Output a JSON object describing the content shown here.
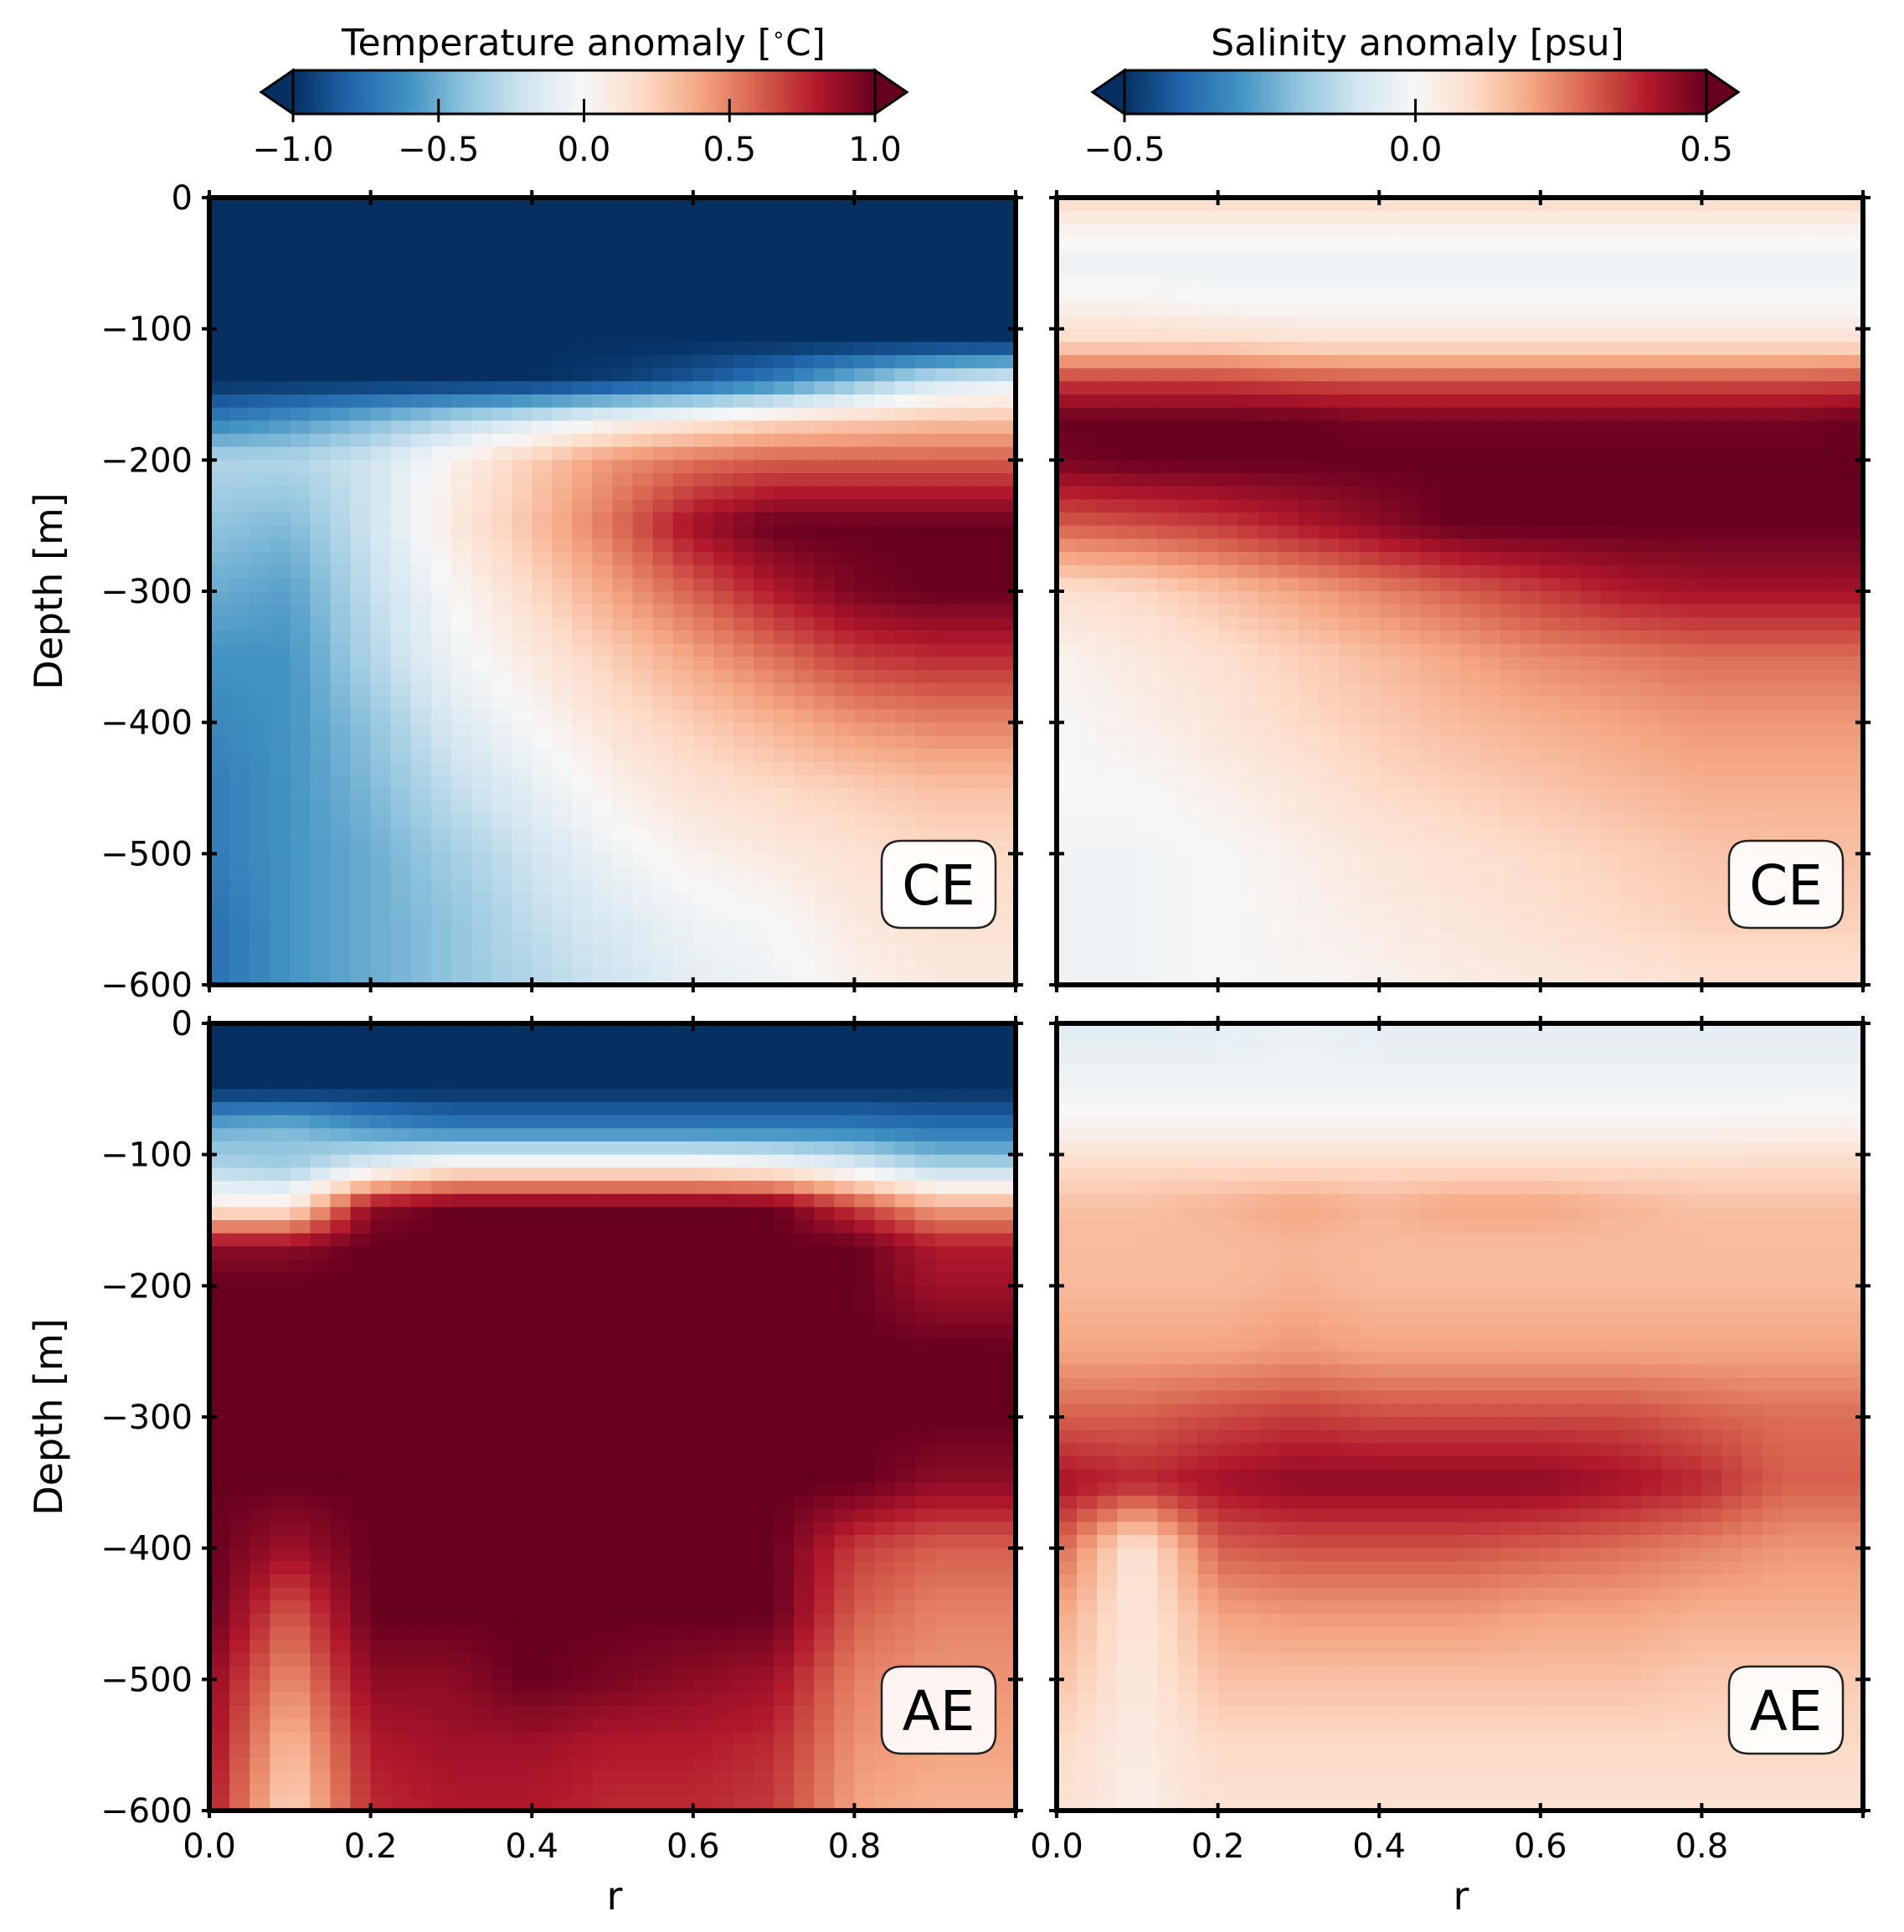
{
  "chart_data": {
    "type": "heatmap",
    "layout": "2x2 grid",
    "colormap": "RdBu_r",
    "colorbars": [
      {
        "id": "temperature",
        "title": "Temperature anomaly [$^\\circ$C]",
        "title_parts": [
          "Temperature anomaly [",
          "∘",
          "C]"
        ],
        "range": [
          -1.0,
          1.0
        ],
        "ticks": [
          -1.0,
          -0.5,
          0.0,
          0.5,
          1.0
        ],
        "tick_labels": [
          "−1.0",
          "−0.5",
          "0.0",
          "0.5",
          "1.0"
        ],
        "extend": "both"
      },
      {
        "id": "salinity",
        "title": "Salinity anomaly [psu]",
        "range": [
          -0.5,
          0.5
        ],
        "ticks": [
          -0.5,
          0.0,
          0.5
        ],
        "tick_labels": [
          "−0.5",
          "0.0",
          "0.5"
        ],
        "extend": "both"
      }
    ],
    "x_axis": {
      "label": "r",
      "range": [
        0.0,
        1.0
      ],
      "ticks": [
        0.0,
        0.2,
        0.4,
        0.6,
        0.8,
        1.0
      ],
      "tick_labels": [
        "0.0",
        "0.2",
        "0.4",
        "0.6",
        "0.8",
        ""
      ]
    },
    "y_axis": {
      "label": "Depth [m]",
      "range": [
        -600,
        0
      ],
      "ticks": [
        0,
        -100,
        -200,
        -300,
        -400,
        -500,
        -600
      ],
      "tick_labels": [
        "0",
        "−100",
        "−200",
        "−300",
        "−400",
        "−500",
        "−600"
      ]
    },
    "grid": false,
    "r_samples": [
      0.0,
      0.1,
      0.2,
      0.3,
      0.4,
      0.5,
      0.6,
      0.7,
      0.8,
      0.9,
      1.0
    ],
    "depth_samples": [
      0,
      -20,
      -50,
      -80,
      -110,
      -140,
      -170,
      -200,
      -250,
      -300,
      -350,
      -400,
      -450,
      -500,
      -550,
      -600
    ],
    "panels": [
      {
        "id": "temp-ce",
        "variable": "temperature",
        "eddy": "CE",
        "row": 0,
        "col": 0,
        "values": [
          [
            -1.0,
            -1.0,
            -1.0,
            -1.0,
            -1.0,
            -1.0,
            -1.0,
            -1.0,
            -1.0,
            -1.0,
            -1.0
          ],
          [
            -1.0,
            -1.0,
            -1.0,
            -1.0,
            -1.0,
            -1.0,
            -1.0,
            -1.0,
            -1.0,
            -1.0,
            -1.0
          ],
          [
            -1.0,
            -1.0,
            -1.0,
            -1.0,
            -1.0,
            -1.0,
            -1.0,
            -1.0,
            -1.0,
            -1.0,
            -1.0
          ],
          [
            -1.0,
            -1.0,
            -1.0,
            -1.0,
            -1.0,
            -1.0,
            -1.0,
            -1.0,
            -1.0,
            -1.0,
            -1.0
          ],
          [
            -1.0,
            -1.0,
            -1.0,
            -1.0,
            -1.0,
            -1.0,
            -1.0,
            -1.0,
            -1.0,
            -1.0,
            -1.0
          ],
          [
            -1.0,
            -1.0,
            -1.0,
            -1.0,
            -1.0,
            -0.95,
            -0.85,
            -0.7,
            -0.45,
            -0.2,
            -0.1
          ],
          [
            -0.7,
            -0.6,
            -0.45,
            -0.3,
            -0.15,
            0.0,
            0.1,
            0.2,
            0.25,
            0.3,
            0.3
          ],
          [
            -0.3,
            -0.3,
            -0.2,
            0.05,
            0.25,
            0.45,
            0.55,
            0.6,
            0.6,
            0.6,
            0.6
          ],
          [
            -0.4,
            -0.45,
            -0.2,
            0.1,
            0.3,
            0.55,
            0.85,
            1.0,
            1.0,
            1.0,
            1.0
          ],
          [
            -0.5,
            -0.55,
            -0.25,
            0.0,
            0.2,
            0.4,
            0.6,
            0.8,
            0.95,
            1.0,
            1.0
          ],
          [
            -0.6,
            -0.6,
            -0.3,
            -0.05,
            0.1,
            0.25,
            0.4,
            0.55,
            0.7,
            0.75,
            0.75
          ],
          [
            -0.65,
            -0.6,
            -0.4,
            -0.15,
            0.0,
            0.15,
            0.25,
            0.35,
            0.45,
            0.5,
            0.5
          ],
          [
            -0.7,
            -0.6,
            -0.45,
            -0.25,
            -0.1,
            0.05,
            0.15,
            0.2,
            0.25,
            0.3,
            0.3
          ],
          [
            -0.7,
            -0.6,
            -0.5,
            -0.35,
            -0.2,
            -0.05,
            0.05,
            0.1,
            0.15,
            0.2,
            0.2
          ],
          [
            -0.75,
            -0.6,
            -0.5,
            -0.4,
            -0.25,
            -0.15,
            -0.05,
            0.0,
            0.1,
            0.15,
            0.15
          ],
          [
            -0.75,
            -0.6,
            -0.5,
            -0.4,
            -0.3,
            -0.2,
            -0.1,
            -0.05,
            0.05,
            0.1,
            0.1
          ]
        ]
      },
      {
        "id": "sal-ce",
        "variable": "salinity",
        "eddy": "CE",
        "row": 0,
        "col": 1,
        "values": [
          [
            0.1,
            0.1,
            0.1,
            0.1,
            0.1,
            0.1,
            0.1,
            0.1,
            0.1,
            0.1,
            0.1
          ],
          [
            0.03,
            0.03,
            0.03,
            0.03,
            0.03,
            0.03,
            0.03,
            0.03,
            0.03,
            0.03,
            0.03
          ],
          [
            -0.03,
            -0.03,
            -0.03,
            -0.03,
            -0.03,
            -0.03,
            -0.03,
            -0.03,
            -0.03,
            -0.03,
            -0.03
          ],
          [
            0.02,
            0.02,
            0.0,
            0.0,
            0.0,
            0.0,
            0.0,
            0.0,
            0.0,
            0.0,
            0.0
          ],
          [
            0.1,
            0.1,
            0.1,
            0.08,
            0.08,
            0.08,
            0.08,
            0.08,
            0.08,
            0.08,
            0.08
          ],
          [
            0.35,
            0.35,
            0.35,
            0.33,
            0.32,
            0.32,
            0.32,
            0.32,
            0.32,
            0.32,
            0.33
          ],
          [
            0.5,
            0.5,
            0.5,
            0.5,
            0.48,
            0.48,
            0.48,
            0.48,
            0.48,
            0.48,
            0.5
          ],
          [
            0.48,
            0.5,
            0.5,
            0.5,
            0.5,
            0.5,
            0.5,
            0.5,
            0.5,
            0.5,
            0.5
          ],
          [
            0.3,
            0.32,
            0.35,
            0.4,
            0.45,
            0.5,
            0.5,
            0.5,
            0.5,
            0.5,
            0.5
          ],
          [
            0.08,
            0.1,
            0.15,
            0.2,
            0.25,
            0.3,
            0.35,
            0.4,
            0.42,
            0.42,
            0.42
          ],
          [
            0.02,
            0.05,
            0.08,
            0.12,
            0.16,
            0.2,
            0.24,
            0.26,
            0.28,
            0.28,
            0.28
          ],
          [
            0.0,
            0.03,
            0.06,
            0.1,
            0.13,
            0.16,
            0.18,
            0.2,
            0.22,
            0.22,
            0.22
          ],
          [
            0.0,
            0.0,
            0.03,
            0.06,
            0.1,
            0.12,
            0.14,
            0.16,
            0.18,
            0.18,
            0.18
          ],
          [
            -0.02,
            -0.02,
            0.0,
            0.03,
            0.06,
            0.08,
            0.1,
            0.12,
            0.14,
            0.15,
            0.15
          ],
          [
            -0.02,
            -0.02,
            0.0,
            0.02,
            0.04,
            0.06,
            0.08,
            0.1,
            0.12,
            0.12,
            0.12
          ],
          [
            -0.02,
            -0.02,
            0.0,
            0.01,
            0.02,
            0.04,
            0.05,
            0.06,
            0.08,
            0.08,
            0.08
          ]
        ]
      },
      {
        "id": "temp-ae",
        "variable": "temperature",
        "eddy": "AE",
        "row": 1,
        "col": 0,
        "values": [
          [
            -1.0,
            -1.0,
            -1.0,
            -1.0,
            -1.0,
            -1.0,
            -1.0,
            -1.0,
            -1.0,
            -1.0,
            -1.0
          ],
          [
            -1.0,
            -1.0,
            -1.0,
            -1.0,
            -1.0,
            -1.0,
            -1.0,
            -1.0,
            -1.0,
            -1.0,
            -1.0
          ],
          [
            -1.0,
            -1.0,
            -1.0,
            -1.0,
            -1.0,
            -1.0,
            -1.0,
            -1.0,
            -1.0,
            -1.0,
            -1.0
          ],
          [
            -0.5,
            -0.45,
            -0.6,
            -0.7,
            -0.7,
            -0.7,
            -0.7,
            -0.7,
            -0.7,
            -0.75,
            -0.75
          ],
          [
            -0.3,
            -0.35,
            -0.1,
            0.1,
            0.1,
            0.1,
            0.1,
            0.05,
            -0.1,
            -0.3,
            -0.3
          ],
          [
            0.1,
            0.1,
            0.9,
            1.0,
            1.0,
            1.0,
            1.0,
            1.0,
            0.7,
            0.4,
            0.4
          ],
          [
            0.9,
            0.9,
            1.0,
            1.0,
            1.0,
            1.0,
            1.0,
            1.0,
            1.0,
            0.8,
            0.8
          ],
          [
            1.0,
            1.0,
            1.0,
            1.0,
            1.0,
            1.0,
            1.0,
            1.0,
            1.0,
            0.85,
            0.85
          ],
          [
            1.0,
            1.0,
            1.0,
            1.0,
            1.0,
            1.0,
            1.0,
            1.0,
            1.0,
            1.0,
            1.0
          ],
          [
            1.0,
            1.0,
            1.0,
            1.0,
            1.0,
            1.0,
            1.0,
            1.0,
            1.0,
            1.0,
            1.0
          ],
          [
            1.0,
            1.0,
            1.0,
            1.0,
            1.0,
            1.0,
            1.0,
            1.0,
            1.0,
            0.9,
            0.9
          ],
          [
            1.0,
            0.85,
            1.0,
            1.0,
            1.0,
            1.0,
            1.0,
            1.0,
            0.7,
            0.6,
            0.6
          ],
          [
            1.0,
            0.6,
            1.0,
            1.0,
            1.0,
            1.0,
            1.0,
            1.0,
            0.6,
            0.5,
            0.5
          ],
          [
            0.9,
            0.45,
            0.9,
            0.9,
            1.0,
            0.95,
            0.9,
            0.85,
            0.5,
            0.45,
            0.45
          ],
          [
            0.85,
            0.3,
            0.8,
            0.85,
            0.85,
            0.8,
            0.8,
            0.75,
            0.45,
            0.4,
            0.4
          ],
          [
            0.8,
            0.2,
            0.75,
            0.8,
            0.8,
            0.75,
            0.75,
            0.7,
            0.4,
            0.35,
            0.35
          ]
        ]
      },
      {
        "id": "sal-ae",
        "variable": "salinity",
        "eddy": "AE",
        "row": 1,
        "col": 1,
        "values": [
          [
            -0.06,
            -0.06,
            -0.05,
            -0.03,
            -0.05,
            -0.05,
            -0.05,
            -0.05,
            -0.05,
            -0.05,
            -0.05
          ],
          [
            -0.04,
            -0.04,
            -0.04,
            -0.03,
            -0.04,
            -0.04,
            -0.04,
            -0.04,
            -0.04,
            -0.04,
            -0.04
          ],
          [
            -0.02,
            -0.02,
            -0.02,
            -0.02,
            -0.02,
            -0.02,
            -0.02,
            -0.02,
            -0.02,
            -0.02,
            -0.02
          ],
          [
            0.02,
            0.02,
            0.02,
            0.02,
            0.02,
            0.02,
            0.02,
            0.02,
            0.02,
            0.03,
            0.03
          ],
          [
            0.1,
            0.1,
            0.1,
            0.1,
            0.1,
            0.1,
            0.1,
            0.1,
            0.1,
            0.1,
            0.1
          ],
          [
            0.15,
            0.15,
            0.17,
            0.2,
            0.17,
            0.2,
            0.2,
            0.17,
            0.15,
            0.15,
            0.15
          ],
          [
            0.16,
            0.16,
            0.16,
            0.17,
            0.16,
            0.16,
            0.16,
            0.16,
            0.16,
            0.16,
            0.16
          ],
          [
            0.16,
            0.16,
            0.16,
            0.18,
            0.16,
            0.16,
            0.16,
            0.16,
            0.16,
            0.16,
            0.16
          ],
          [
            0.2,
            0.2,
            0.2,
            0.22,
            0.2,
            0.2,
            0.2,
            0.2,
            0.2,
            0.2,
            0.2
          ],
          [
            0.3,
            0.3,
            0.33,
            0.35,
            0.33,
            0.33,
            0.33,
            0.33,
            0.3,
            0.28,
            0.28
          ],
          [
            0.42,
            0.38,
            0.42,
            0.45,
            0.45,
            0.45,
            0.45,
            0.42,
            0.38,
            0.3,
            0.3
          ],
          [
            0.3,
            0.05,
            0.3,
            0.32,
            0.32,
            0.32,
            0.3,
            0.28,
            0.25,
            0.22,
            0.22
          ],
          [
            0.2,
            0.05,
            0.2,
            0.22,
            0.22,
            0.22,
            0.2,
            0.2,
            0.18,
            0.18,
            0.18
          ],
          [
            0.15,
            0.05,
            0.15,
            0.15,
            0.15,
            0.15,
            0.15,
            0.15,
            0.13,
            0.13,
            0.13
          ],
          [
            0.1,
            0.04,
            0.1,
            0.1,
            0.1,
            0.1,
            0.1,
            0.1,
            0.1,
            0.1,
            0.1
          ],
          [
            0.08,
            0.03,
            0.08,
            0.08,
            0.08,
            0.08,
            0.08,
            0.08,
            0.08,
            0.08,
            0.08
          ]
        ]
      }
    ]
  }
}
